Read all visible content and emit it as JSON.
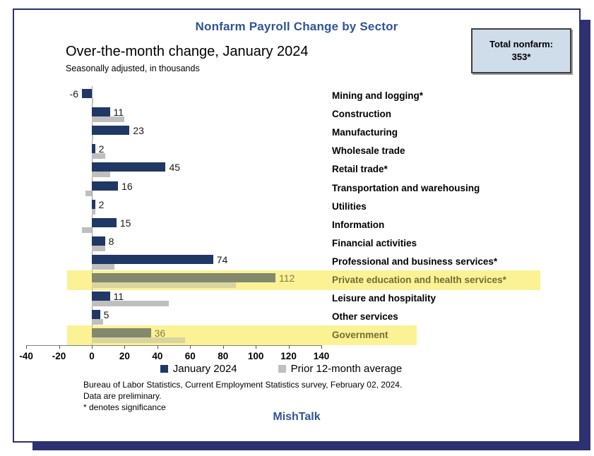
{
  "header": {
    "title": "Nonfarm Payroll Change by Sector",
    "subtitle": "Over-the-month change, January 2024",
    "note": "Seasonally adjusted, in thousands",
    "total_box": {
      "label": "Total nonfarm:",
      "value": "353*"
    }
  },
  "chart_data": {
    "type": "bar",
    "orientation": "horizontal",
    "title": "Nonfarm Payroll Change by Sector",
    "subtitle": "Over-the-month change, January 2024",
    "units": "thousands, seasonally adjusted",
    "xlim": [
      -40,
      140
    ],
    "xticks": [
      -40,
      -20,
      0,
      20,
      40,
      60,
      80,
      100,
      120,
      140
    ],
    "grid": false,
    "legend_position": "bottom",
    "categories": [
      "Mining and logging*",
      "Construction",
      "Manufacturing",
      "Wholesale trade",
      "Retail trade*",
      "Transportation and warehousing",
      "Utilities",
      "Information",
      "Financial activities",
      "Professional and business services*",
      "Private education and health services*",
      "Leisure and hospitality",
      "Other services",
      "Government"
    ],
    "series": [
      {
        "name": "January 2024",
        "color": "#1f3864",
        "values": [
          -6,
          11,
          23,
          2,
          45,
          16,
          2,
          15,
          8,
          74,
          112,
          11,
          5,
          36
        ],
        "labeled": true
      },
      {
        "name": "Prior 12-month average",
        "color": "#bfbfbf",
        "values": [
          1,
          20,
          1,
          8,
          11,
          -4,
          2,
          -6,
          8,
          14,
          88,
          47,
          7,
          57
        ],
        "labeled": false
      }
    ],
    "highlighted_categories": [
      "Private education and health services*",
      "Government"
    ],
    "annotations": {
      "total_nonfarm": "353*"
    }
  },
  "legend": {
    "items": [
      {
        "label": "January 2024"
      },
      {
        "label": "Prior 12-month average"
      }
    ]
  },
  "footer": {
    "source": "Bureau of Labor Statistics, Current Employment Statistics survey, February 02, 2024.",
    "line2": "Data are preliminary.",
    "line3": "* denotes significance",
    "brand": "MishTalk"
  },
  "colors": {
    "bar_primary": "#1f3864",
    "bar_secondary": "#bfbfbf",
    "highlight_yellow": "#fcf6ad",
    "accent_blue": "#2f5496",
    "frame_navy": "#2d3071",
    "total_box_bg": "#cfdcea"
  }
}
